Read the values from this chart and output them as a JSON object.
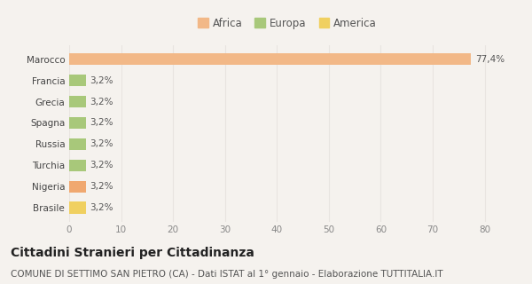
{
  "categories": [
    "Brasile",
    "Nigeria",
    "Turchia",
    "Russia",
    "Spagna",
    "Grecia",
    "Francia",
    "Marocco"
  ],
  "values": [
    3.2,
    3.2,
    3.2,
    3.2,
    3.2,
    3.2,
    3.2,
    77.4
  ],
  "colors": [
    "#f0d060",
    "#f0a870",
    "#a8c87a",
    "#a8c87a",
    "#a8c87a",
    "#a8c87a",
    "#a8c87a",
    "#f2b887"
  ],
  "labels": [
    "3,2%",
    "3,2%",
    "3,2%",
    "3,2%",
    "3,2%",
    "3,2%",
    "3,2%",
    "77,4%"
  ],
  "legend": [
    {
      "label": "Africa",
      "color": "#f2b887"
    },
    {
      "label": "Europa",
      "color": "#a8c87a"
    },
    {
      "label": "America",
      "color": "#f0d060"
    }
  ],
  "xlim": [
    0,
    84
  ],
  "xticks": [
    0,
    10,
    20,
    30,
    40,
    50,
    60,
    70,
    80
  ],
  "title": "Cittadini Stranieri per Cittadinanza",
  "subtitle": "COMUNE DI SETTIMO SAN PIETRO (CA) - Dati ISTAT al 1° gennaio - Elaborazione TUTTITALIA.IT",
  "bg_color": "#f5f2ee",
  "grid_color": "#e8e4e0",
  "title_fontsize": 10,
  "subtitle_fontsize": 7.5,
  "label_fontsize": 7.5,
  "tick_fontsize": 7.5,
  "legend_fontsize": 8.5
}
